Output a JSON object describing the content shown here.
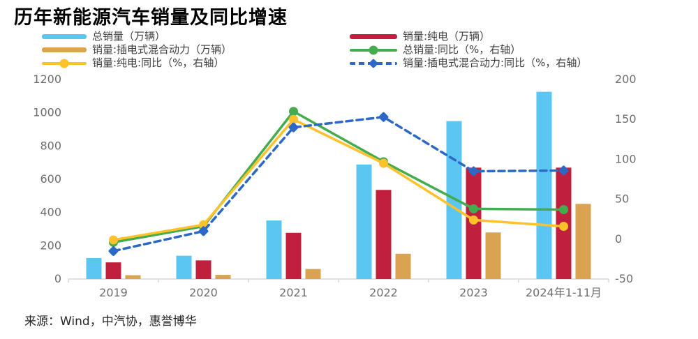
{
  "title": "历年新能源汽车销量及同比增速",
  "source": "来源：Wind，中汽协，惠誉博华",
  "colors": {
    "total_bar": "#5BC6F2",
    "bev_bar": "#C0203E",
    "phev_bar": "#D9A351",
    "total_yoy_line": "#45AB4F",
    "bev_yoy_line": "#FFC22D",
    "phev_yoy_line": "#2C68C6",
    "axis_text": "#6E6E6E",
    "axis_line": "#D6D6D6",
    "legend_text": "#3D3D3D",
    "title_text": "#000000",
    "source_text": "#262626"
  },
  "legend": {
    "left": [
      {
        "label": "总销量（万辆）",
        "swatch": "bar",
        "color_key": "total_bar"
      },
      {
        "label": "销量:插电式混合动力（万辆）",
        "swatch": "bar",
        "color_key": "phev_bar"
      },
      {
        "label": "销量:纯电:同比（%，右轴）",
        "swatch": "line-circle",
        "color_key": "bev_yoy_line"
      }
    ],
    "right": [
      {
        "label": "销量:纯电（万辆）",
        "swatch": "bar",
        "color_key": "bev_bar"
      },
      {
        "label": "总销量:同比（%，右轴）",
        "swatch": "line-circle",
        "color_key": "total_yoy_line"
      },
      {
        "label": "销量:插电式混合动力:同比（%，右轴）",
        "swatch": "dashed-line-diamond",
        "color_key": "phev_yoy_line"
      }
    ]
  },
  "chart_data": {
    "type": "bar",
    "subtype": "combo-bar-line-dual-axis",
    "title": "历年新能源汽车销量及同比增速",
    "categories": [
      "2019",
      "2020",
      "2021",
      "2022",
      "2023",
      "2024年1-11月"
    ],
    "bar_series": [
      {
        "name": "总销量（万辆）",
        "axis": "left",
        "color_key": "total_bar",
        "values": [
          126,
          140,
          352,
          689,
          950,
          1126
        ]
      },
      {
        "name": "销量:纯电（万辆）",
        "axis": "left",
        "color_key": "bev_bar",
        "values": [
          100,
          112,
          278,
          536,
          670,
          670
        ]
      },
      {
        "name": "销量:插电式混合动力（万辆）",
        "axis": "left",
        "color_key": "phev_bar",
        "values": [
          23,
          25,
          60,
          152,
          280,
          452
        ]
      }
    ],
    "line_series": [
      {
        "name": "总销量:同比（%，右轴）",
        "axis": "right",
        "color_key": "total_yoy_line",
        "style": "solid",
        "marker": "circle",
        "values": [
          -4,
          16,
          160,
          97,
          38,
          37
        ]
      },
      {
        "name": "销量:纯电:同比（%，右轴）",
        "axis": "right",
        "color_key": "bev_yoy_line",
        "style": "solid",
        "marker": "circle",
        "values": [
          -1,
          18,
          150,
          95,
          24,
          16
        ]
      },
      {
        "name": "销量:插电式混合动力:同比（%，右轴）",
        "axis": "right",
        "color_key": "phev_yoy_line",
        "style": "dashed",
        "marker": "diamond",
        "values": [
          -15,
          10,
          140,
          153,
          85,
          86
        ]
      }
    ],
    "left_axis": {
      "min": 0,
      "max": 1200,
      "step": 200,
      "ticks": [
        0,
        200,
        400,
        600,
        800,
        1000,
        1200
      ]
    },
    "right_axis": {
      "min": -50,
      "max": 200,
      "step": 50,
      "ticks": [
        -50,
        0,
        50,
        100,
        150,
        200
      ]
    },
    "grid": false,
    "legend_position": "top"
  }
}
